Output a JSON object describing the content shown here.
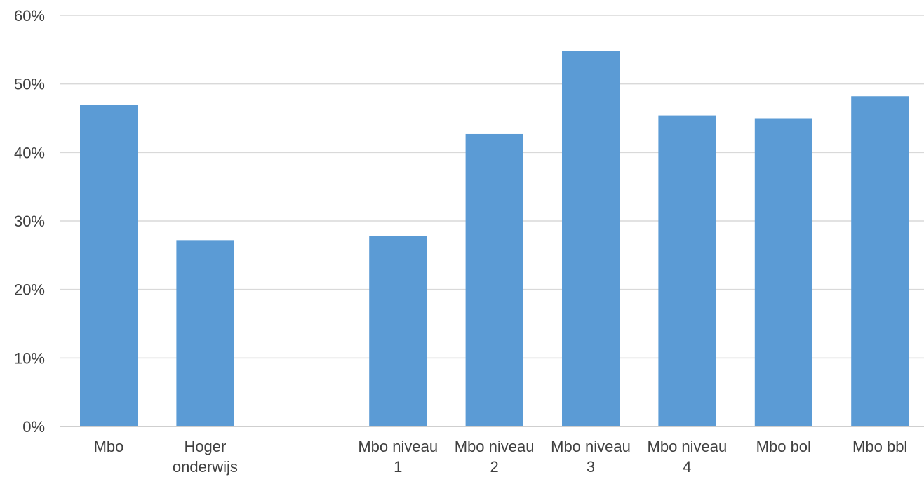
{
  "chart_data": {
    "type": "bar",
    "title": "",
    "xlabel": "",
    "ylabel": "",
    "ylim": [
      0,
      60
    ],
    "yticks": [
      0,
      10,
      20,
      30,
      40,
      50,
      60
    ],
    "ytick_labels": [
      "0%",
      "10%",
      "20%",
      "30%",
      "40%",
      "50%",
      "60%"
    ],
    "grid": true,
    "legend": "none",
    "bar_color": "#5b9bd5",
    "categories": [
      "Mbo",
      "Hoger onderwijs",
      "",
      "Mbo niveau 1",
      "Mbo niveau 2",
      "Mbo niveau 3",
      "Mbo niveau 4",
      "Mbo bol",
      "Mbo bbl"
    ],
    "category_label_lines": [
      [
        "Mbo"
      ],
      [
        "Hoger",
        "onderwijs"
      ],
      [],
      [
        "Mbo niveau",
        "1"
      ],
      [
        "Mbo niveau",
        "2"
      ],
      [
        "Mbo niveau",
        "3"
      ],
      [
        "Mbo niveau",
        "4"
      ],
      [
        "Mbo bol"
      ],
      [
        "Mbo bbl"
      ]
    ],
    "values": [
      46.9,
      27.2,
      null,
      27.8,
      42.7,
      54.8,
      45.4,
      45.0,
      48.2
    ]
  }
}
